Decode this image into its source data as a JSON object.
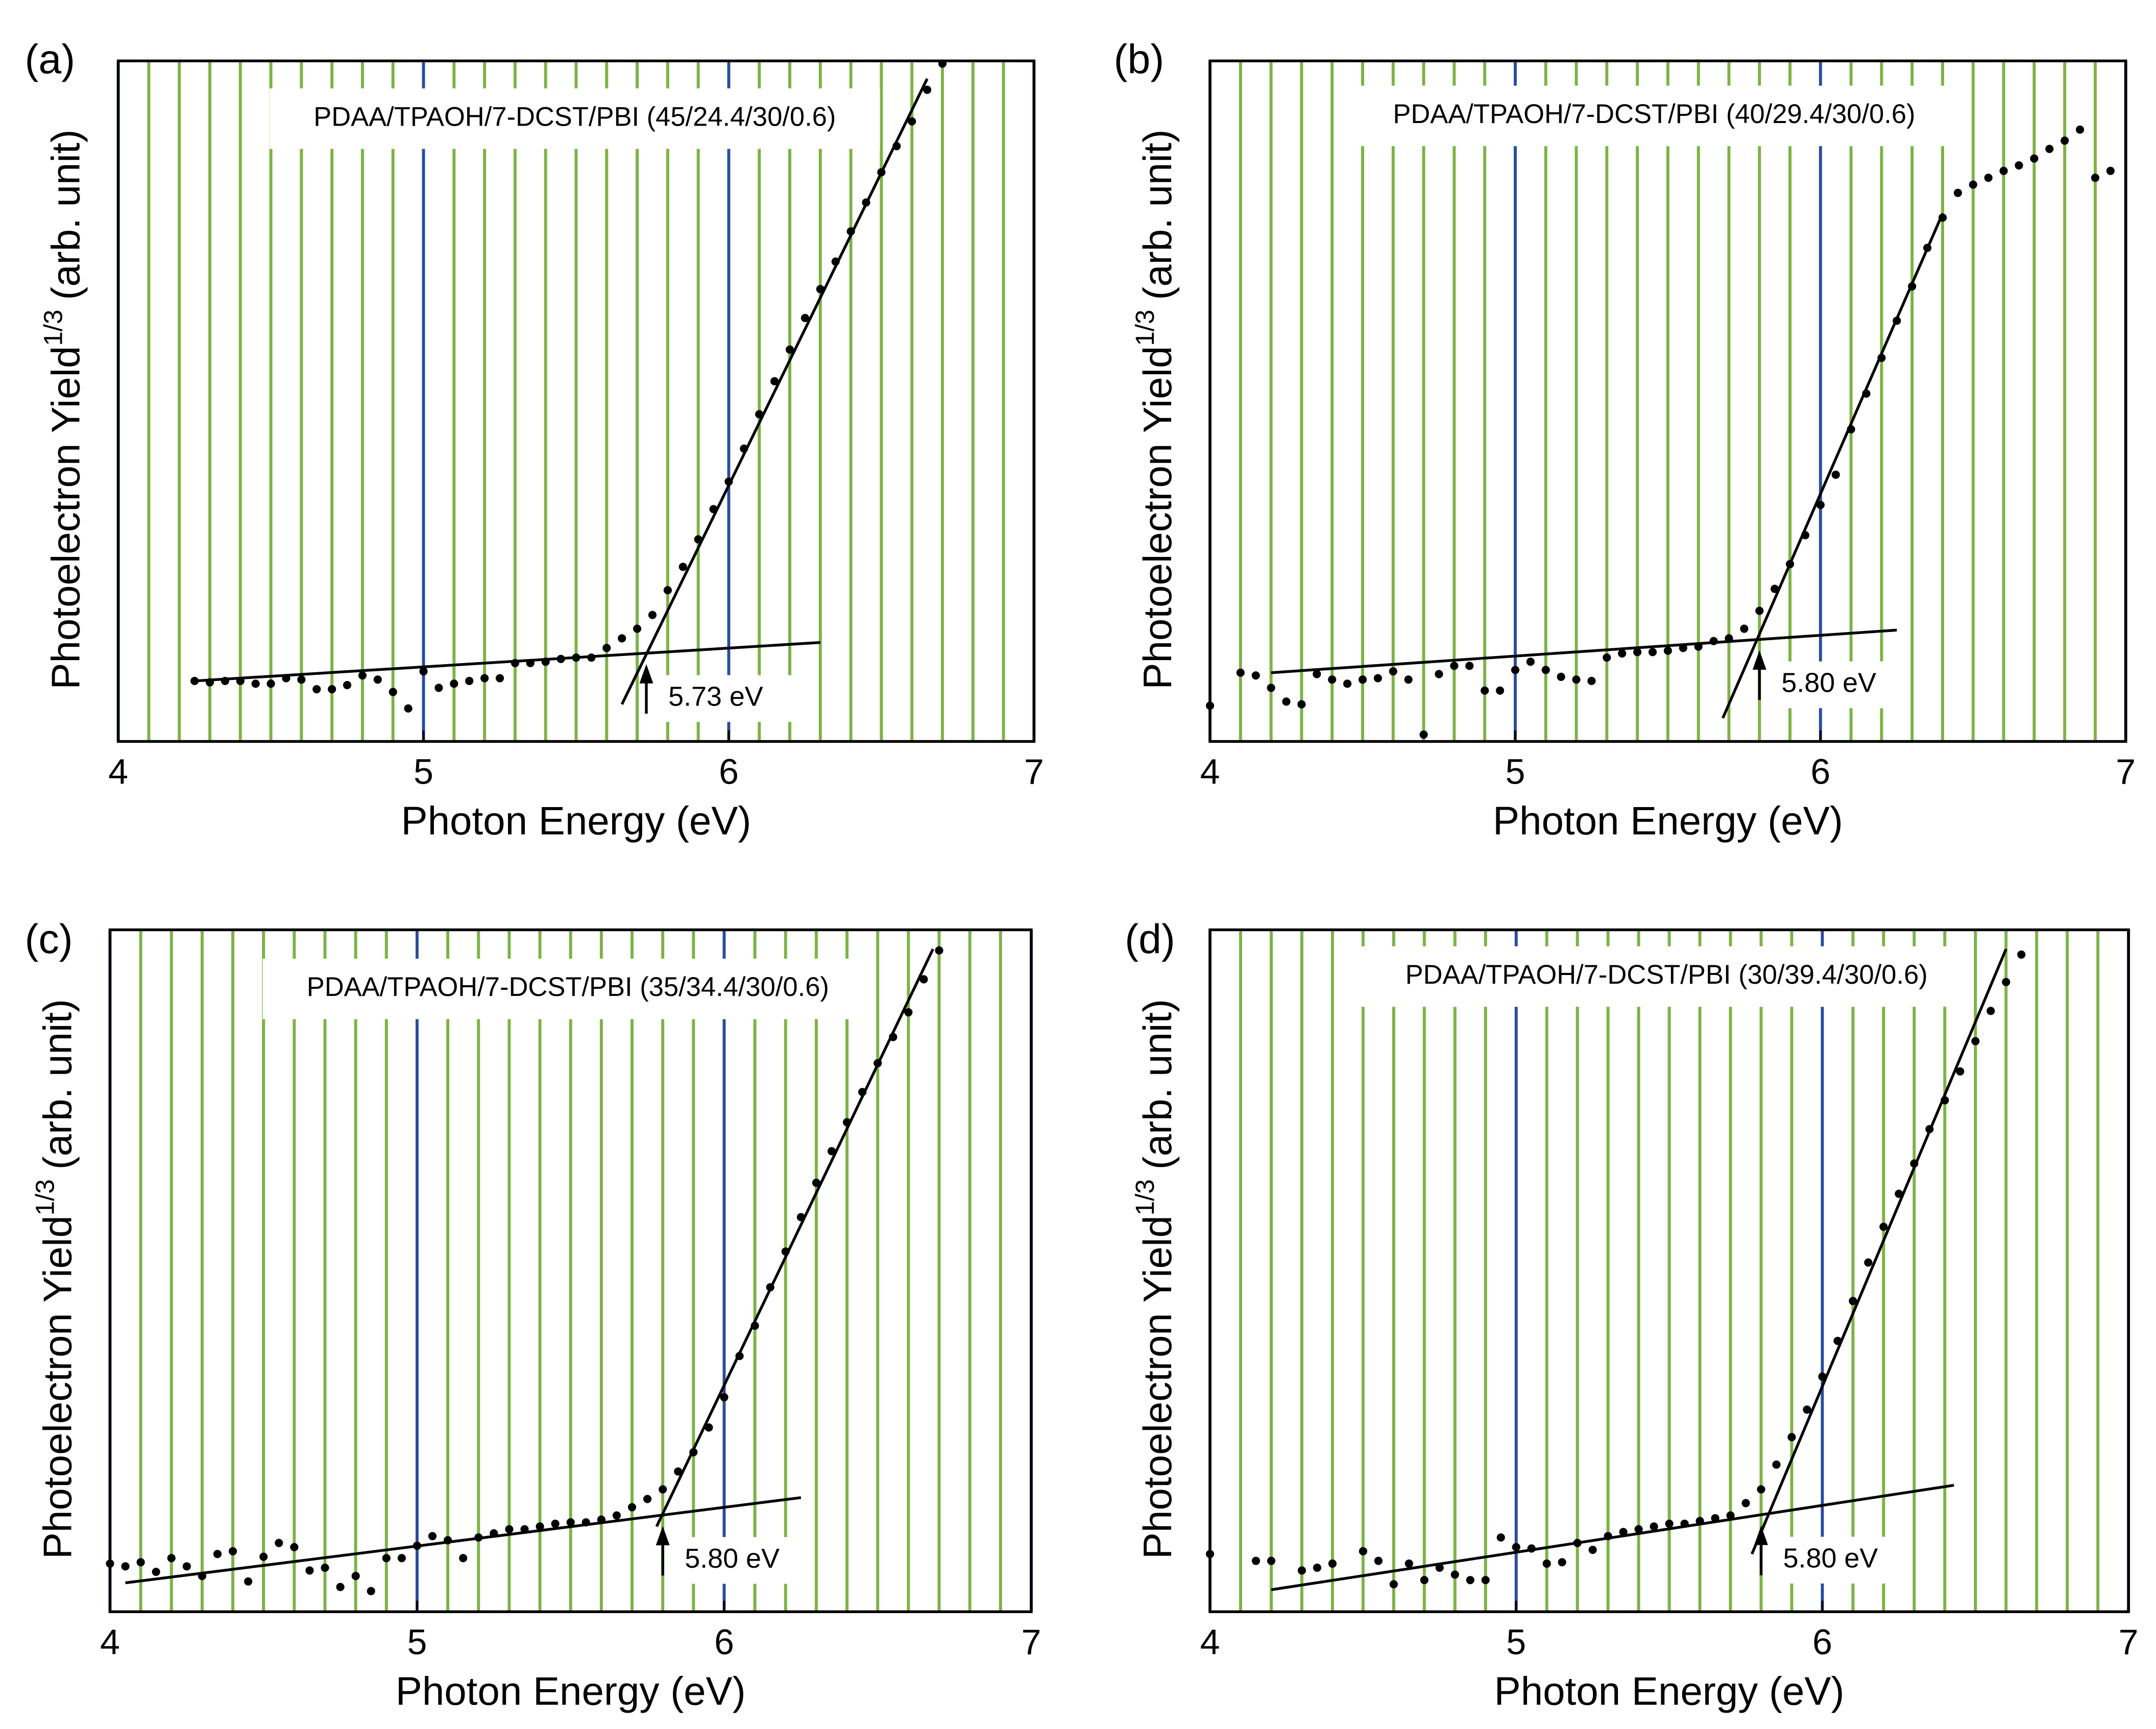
{
  "chart_data": [
    {
      "type": "scatter",
      "panel_label": "(a)",
      "title": "PDAA/TPAOH/7-DCST/PBI (45/24.4/30/0.6)",
      "xlabel": "Photon Energy (eV)",
      "ylabel": {
        "main": "Photoelectron Yield",
        "superscript": "1/3",
        "suffix": "(arb. unit)"
      },
      "xlim": [
        4,
        7
      ],
      "ylim": [
        0,
        495
      ],
      "xticks": [
        4,
        5,
        6,
        7
      ],
      "minor_divisions": 10,
      "major_grid_color": "#2a4d9b",
      "minor_grid_color": "#7cb342",
      "color": "#000000",
      "x": [
        4.25,
        4.3,
        4.35,
        4.4,
        4.45,
        4.5,
        4.55,
        4.6,
        4.65,
        4.7,
        4.75,
        4.8,
        4.85,
        4.9,
        4.95,
        5,
        5.05,
        5.1,
        5.15,
        5.2,
        5.25,
        5.3,
        5.35,
        5.4,
        5.45,
        5.5,
        5.55,
        5.6,
        5.65,
        5.7,
        5.75,
        5.8,
        5.85,
        5.9,
        5.95,
        6,
        6.05,
        6.1,
        6.15,
        6.2,
        6.25,
        6.3,
        6.35,
        6.4,
        6.45,
        6.5,
        6.55,
        6.6,
        6.65,
        6.7
      ],
      "values": [
        44,
        43,
        44,
        44,
        42,
        42,
        46,
        45,
        38,
        38,
        41,
        48,
        45,
        36,
        24,
        51,
        39,
        42,
        44,
        46,
        46,
        57,
        57,
        58,
        60,
        61,
        61,
        68,
        75,
        82,
        92,
        110,
        127,
        147,
        169,
        189,
        213,
        238,
        262,
        285,
        308,
        329,
        349,
        371,
        392,
        414,
        433,
        451,
        474,
        493
      ],
      "fits": [
        {
          "x": [
            4.25,
            6.3
          ],
          "y": [
            44,
            72
          ]
        },
        {
          "x": [
            5.65,
            6.65
          ],
          "y": [
            27,
            482
          ]
        }
      ],
      "annotations": [
        {
          "text": "5.73 eV",
          "x": 5.73
        }
      ]
    },
    {
      "type": "scatter",
      "panel_label": "(b)",
      "title": "PDAA/TPAOH/7-DCST/PBI (40/29.4/30/0.6)",
      "xlabel": "Photon Energy (eV)",
      "ylabel": {
        "main": "Photoelectron Yield",
        "superscript": "1/3",
        "suffix": "(arb. unit)"
      },
      "xlim": [
        4,
        7
      ],
      "ylim": [
        0,
        495
      ],
      "xticks": [
        4,
        5,
        6,
        7
      ],
      "minor_divisions": 10,
      "major_grid_color": "#2a4d9b",
      "minor_grid_color": "#7cb342",
      "color": "#000000",
      "x": [
        4,
        4.1,
        4.15,
        4.2,
        4.25,
        4.3,
        4.35,
        4.4,
        4.45,
        4.5,
        4.55,
        4.6,
        4.65,
        4.7,
        4.75,
        4.8,
        4.85,
        4.9,
        4.95,
        5,
        5.05,
        5.1,
        5.15,
        5.2,
        5.25,
        5.3,
        5.35,
        5.4,
        5.45,
        5.5,
        5.55,
        5.6,
        5.65,
        5.7,
        5.75,
        5.8,
        5.85,
        5.9,
        5.95,
        6,
        6.05,
        6.1,
        6.15,
        6.2,
        6.25,
        6.3,
        6.35,
        6.4,
        6.45,
        6.5,
        6.55,
        6.6,
        6.65,
        6.7,
        6.75,
        6.8,
        6.85,
        6.9,
        6.95
      ],
      "values": [
        26,
        50,
        48,
        39,
        29,
        27,
        49,
        45,
        42,
        45,
        46,
        51,
        45,
        5,
        49,
        55,
        55,
        37,
        37,
        52,
        58,
        52,
        47,
        45,
        44,
        61,
        64,
        65,
        65,
        66,
        68,
        69,
        73,
        75,
        82,
        95,
        111,
        129,
        150,
        172,
        194,
        227,
        253,
        279,
        306,
        331,
        359,
        381,
        399,
        405,
        410,
        415,
        419,
        424,
        431,
        437,
        445,
        410,
        415
      ],
      "fits": [
        {
          "x": [
            4.2,
            6.25
          ],
          "y": [
            50,
            81
          ]
        },
        {
          "x": [
            5.68,
            6.4
          ],
          "y": [
            17,
            384
          ]
        }
      ],
      "annotations": [
        {
          "text": "5.80 eV",
          "x": 5.8
        }
      ]
    },
    {
      "type": "scatter",
      "panel_label": "(c)",
      "title": "PDAA/TPAOH/7-DCST/PBI (35/34.4/30/0.6)",
      "xlabel": "Photon Energy (eV)",
      "ylabel": {
        "main": "Photoelectron Yield",
        "superscript": "1/3",
        "suffix": "(arb. unit)"
      },
      "xlim": [
        4,
        7
      ],
      "ylim": [
        0,
        496
      ],
      "xticks": [
        4,
        5,
        6,
        7
      ],
      "minor_divisions": 10,
      "major_grid_color": "#2a4d9b",
      "minor_grid_color": "#7cb342",
      "color": "#000000",
      "x": [
        4,
        4.05,
        4.1,
        4.15,
        4.2,
        4.25,
        4.3,
        4.35,
        4.4,
        4.45,
        4.5,
        4.55,
        4.6,
        4.65,
        4.7,
        4.75,
        4.8,
        4.85,
        4.9,
        4.95,
        5,
        5.05,
        5.1,
        5.15,
        5.2,
        5.25,
        5.3,
        5.35,
        5.4,
        5.45,
        5.5,
        5.55,
        5.6,
        5.65,
        5.7,
        5.75,
        5.8,
        5.85,
        5.9,
        5.95,
        6,
        6.05,
        6.1,
        6.15,
        6.2,
        6.25,
        6.3,
        6.35,
        6.4,
        6.45,
        6.5,
        6.55,
        6.6,
        6.65,
        6.7
      ],
      "values": [
        35,
        33,
        36,
        29,
        39,
        33,
        26,
        42,
        44,
        22,
        40,
        50,
        47,
        30,
        32,
        18,
        26,
        15,
        39,
        39,
        48,
        55,
        52,
        39,
        54,
        57,
        60,
        60,
        62,
        64,
        65,
        65,
        67,
        70,
        76,
        82,
        89,
        102,
        116,
        134,
        156,
        186,
        208,
        236,
        262,
        287,
        312,
        335,
        356,
        378,
        399,
        418,
        436,
        460,
        481
      ],
      "fits": [
        {
          "x": [
            4.05,
            6.25
          ],
          "y": [
            21,
            83
          ]
        },
        {
          "x": [
            5.78,
            6.68
          ],
          "y": [
            62,
            482
          ]
        }
      ],
      "annotations": [
        {
          "text": "5.80 eV",
          "x": 5.8
        }
      ]
    },
    {
      "type": "scatter",
      "panel_label": "(d)",
      "title": "PDAA/TPAOH/7-DCST/PBI (30/39.4/30/0.6)",
      "xlabel": "Photon Energy (eV)",
      "ylabel": {
        "main": "Photoelectron Yield",
        "superscript": "1/3",
        "suffix": "(arb. unit)"
      },
      "xlim": [
        4,
        7
      ],
      "ylim": [
        0,
        496
      ],
      "xticks": [
        4,
        5,
        6,
        7
      ],
      "minor_divisions": 10,
      "major_grid_color": "#2a4d9b",
      "minor_grid_color": "#7cb342",
      "color": "#000000",
      "x": [
        4,
        4.15,
        4.2,
        4.3,
        4.35,
        4.4,
        4.5,
        4.55,
        4.6,
        4.65,
        4.7,
        4.75,
        4.8,
        4.85,
        4.9,
        4.95,
        5,
        5.05,
        5.1,
        5.15,
        5.2,
        5.25,
        5.3,
        5.35,
        5.4,
        5.45,
        5.5,
        5.55,
        5.6,
        5.65,
        5.7,
        5.75,
        5.8,
        5.85,
        5.9,
        5.95,
        6,
        6.05,
        6.1,
        6.15,
        6.2,
        6.25,
        6.3,
        6.35,
        6.4,
        6.45,
        6.5,
        6.55,
        6.6,
        6.65
      ],
      "values": [
        42,
        37,
        37,
        30,
        32,
        35,
        44,
        37,
        20,
        35,
        23,
        32,
        27,
        23,
        23,
        54,
        47,
        46,
        35,
        36,
        50,
        45,
        55,
        58,
        60,
        62,
        64,
        64,
        66,
        68,
        70,
        79,
        89,
        107,
        127,
        147,
        171,
        197,
        226,
        254,
        280,
        304,
        326,
        351,
        372,
        393,
        415,
        437,
        458,
        478
      ],
      "fits": [
        {
          "x": [
            4.2,
            6.43
          ],
          "y": [
            16,
            92
          ]
        },
        {
          "x": [
            5.77,
            6.6
          ],
          "y": [
            42,
            482
          ]
        }
      ],
      "annotations": [
        {
          "text": "5.80 eV",
          "x": 5.8
        }
      ]
    }
  ]
}
